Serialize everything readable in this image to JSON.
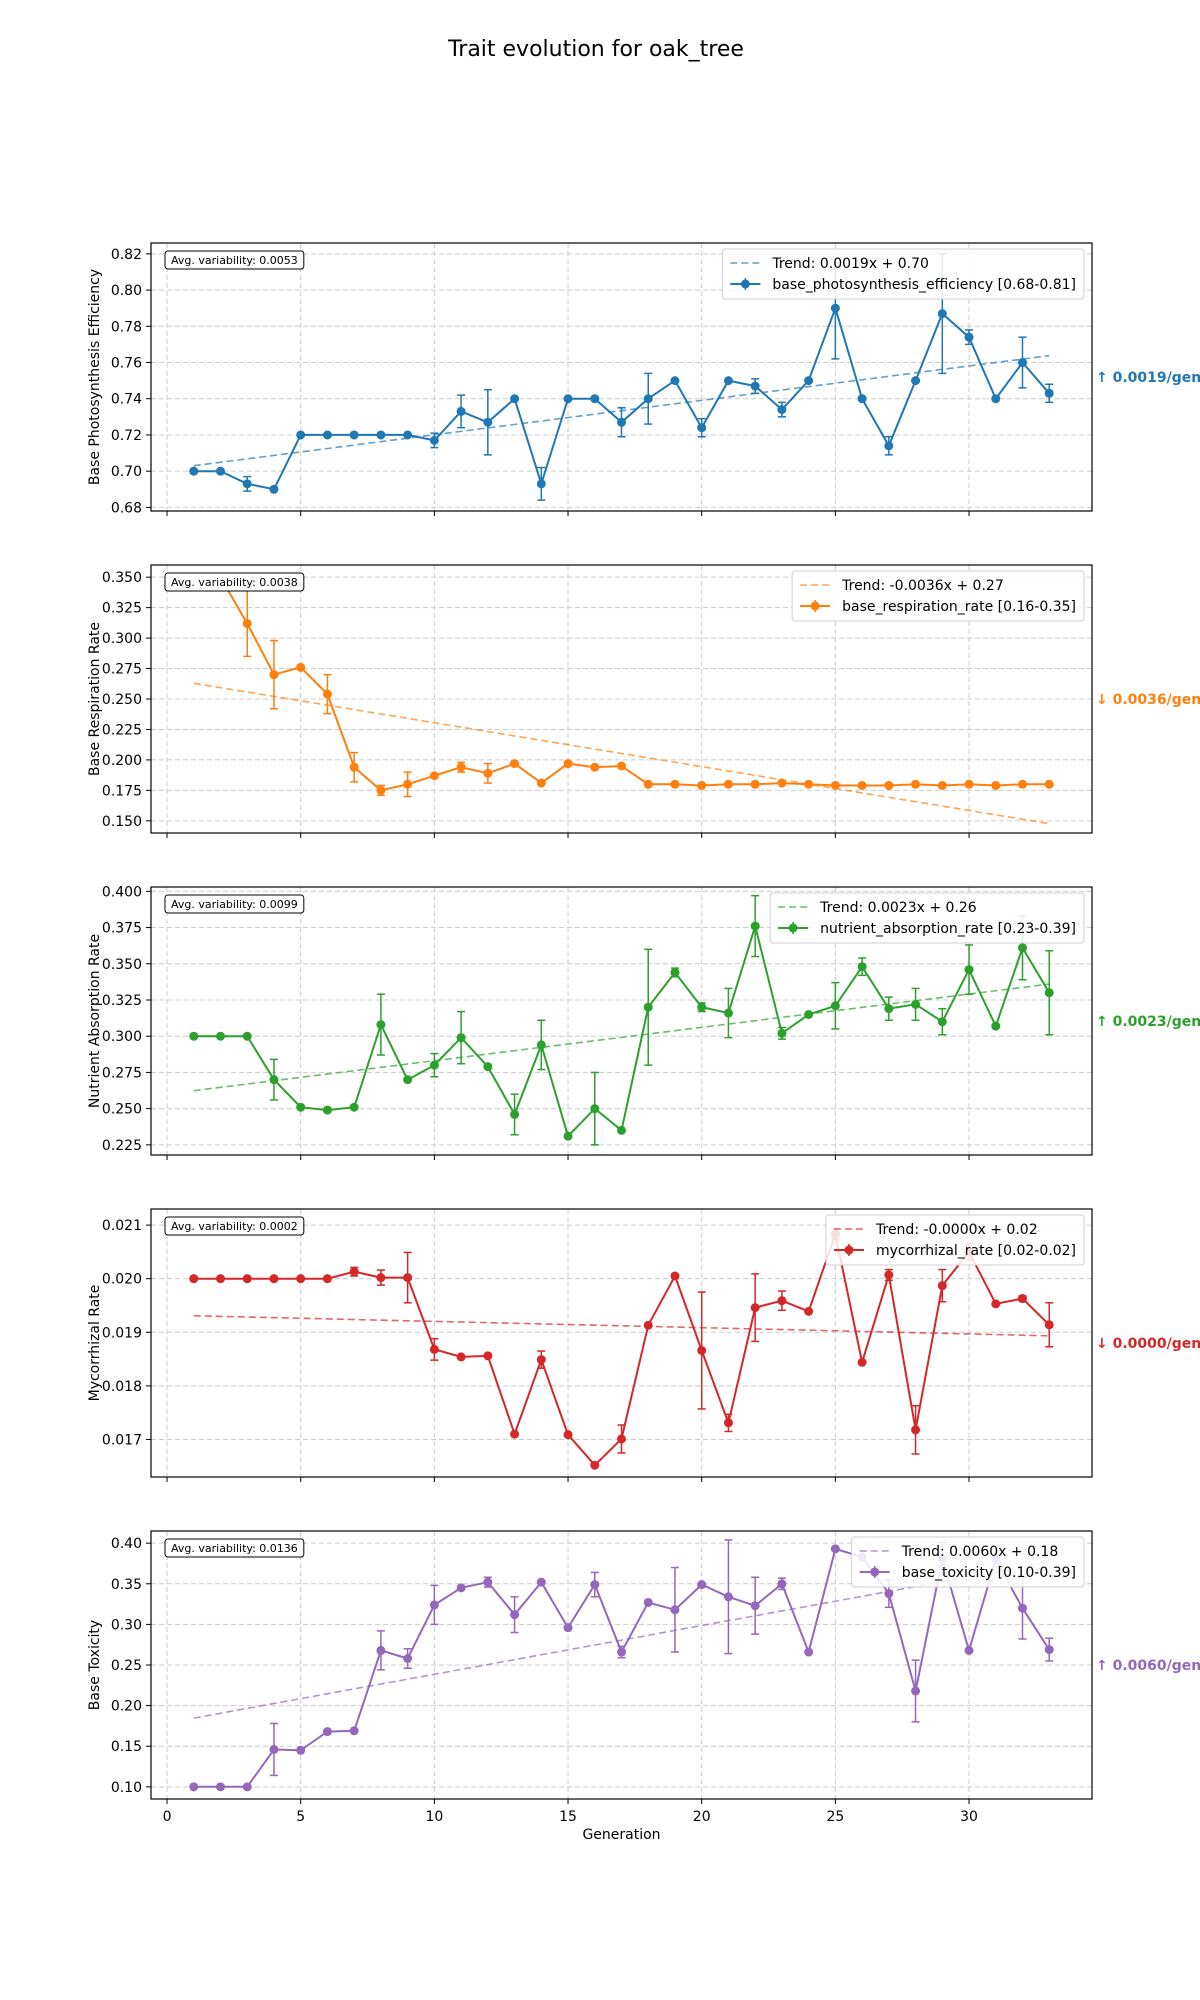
{
  "figure_title": "Trait evolution for oak_tree",
  "colors": {
    "base_photosynthesis_efficiency": "#1f77b4",
    "base_respiration_rate": "#ff7f0e",
    "nutrient_absorption_rate": "#2ca02c",
    "mycorrhizal_rate": "#d62728",
    "base_toxicity": "#9467bd",
    "grid": "#cccccc",
    "axis": "#000000"
  },
  "chart_data": [
    {
      "type": "line",
      "id": "base_photosynthesis_efficiency",
      "ylabel": "Base Photosynthesis Efficiency",
      "xlabel": "",
      "xlim": [
        -0.6,
        34.6
      ],
      "ylim": [
        0.678,
        0.826
      ],
      "yticks": [
        0.68,
        0.7,
        0.72,
        0.74,
        0.76,
        0.78,
        0.8,
        0.82
      ],
      "ytick_labels": [
        "0.68",
        "0.70",
        "0.72",
        "0.74",
        "0.76",
        "0.78",
        "0.80",
        "0.82"
      ],
      "xticks": [
        0,
        5,
        10,
        15,
        20,
        25,
        30
      ],
      "xtick_labels": [],
      "variability_label": "Avg. variability: 0.0053",
      "trend_label": "Trend: 0.0019x + 0.70",
      "series_label": "base_photosynthesis_efficiency [0.68-0.81]",
      "rate_label": "↑ 0.0019/gen",
      "trend": {
        "slope": 0.0019,
        "intercept": 0.7011
      },
      "x": [
        1,
        2,
        3,
        4,
        5,
        6,
        7,
        8,
        9,
        10,
        11,
        12,
        13,
        14,
        15,
        16,
        17,
        18,
        19,
        20,
        21,
        22,
        23,
        24,
        25,
        26,
        27,
        28,
        29,
        30,
        31,
        32,
        33
      ],
      "values": [
        0.7,
        0.7,
        0.693,
        0.69,
        0.72,
        0.72,
        0.72,
        0.72,
        0.72,
        0.717,
        0.733,
        0.727,
        0.74,
        0.693,
        0.74,
        0.74,
        0.727,
        0.74,
        0.75,
        0.724,
        0.75,
        0.747,
        0.734,
        0.75,
        0.79,
        0.74,
        0.714,
        0.75,
        0.787,
        0.774,
        0.74,
        0.76,
        0.743
      ],
      "errors": [
        0,
        0,
        0.004,
        0,
        0,
        0,
        0,
        0,
        0,
        0.004,
        0.009,
        0.018,
        0,
        0.009,
        0,
        0,
        0.008,
        0.014,
        0,
        0.005,
        0,
        0.004,
        0.004,
        0,
        0.028,
        0,
        0.005,
        0,
        0.033,
        0.004,
        0,
        0.014,
        0.005
      ]
    },
    {
      "type": "line",
      "id": "base_respiration_rate",
      "ylabel": "Base Respiration Rate",
      "xlabel": "",
      "xlim": [
        -0.6,
        34.6
      ],
      "ylim": [
        0.14,
        0.36
      ],
      "yticks": [
        0.15,
        0.175,
        0.2,
        0.225,
        0.25,
        0.275,
        0.3,
        0.325,
        0.35
      ],
      "ytick_labels": [
        "0.150",
        "0.175",
        "0.200",
        "0.225",
        "0.250",
        "0.275",
        "0.300",
        "0.325",
        "0.350"
      ],
      "xticks": [
        0,
        5,
        10,
        15,
        20,
        25,
        30
      ],
      "xtick_labels": [],
      "variability_label": "Avg. variability: 0.0038",
      "trend_label": "Trend: -0.0036x + 0.27",
      "series_label": "base_respiration_rate [0.16-0.35]",
      "rate_label": "↓ 0.0036/gen",
      "trend": {
        "slope": -0.0036,
        "intercept": 0.2665
      },
      "x": [
        1,
        2,
        3,
        4,
        5,
        6,
        7,
        8,
        9,
        10,
        11,
        12,
        13,
        14,
        15,
        16,
        17,
        18,
        19,
        20,
        21,
        22,
        23,
        24,
        25,
        26,
        27,
        28,
        29,
        30,
        31,
        32,
        33
      ],
      "values": [
        0.35,
        0.35,
        0.312,
        0.27,
        0.276,
        0.254,
        0.194,
        0.175,
        0.18,
        0.187,
        0.194,
        0.189,
        0.197,
        0.181,
        0.197,
        0.194,
        0.195,
        0.18,
        0.18,
        0.179,
        0.18,
        0.18,
        0.181,
        0.18,
        0.179,
        0.179,
        0.179,
        0.18,
        0.179,
        0.18,
        0.179,
        0.18,
        0.18
      ],
      "errors": [
        0,
        0,
        0.027,
        0.028,
        0,
        0.016,
        0.012,
        0.004,
        0.01,
        0,
        0.004,
        0.008,
        0,
        0,
        0,
        0,
        0,
        0,
        0,
        0,
        0,
        0,
        0,
        0,
        0,
        0,
        0,
        0,
        0,
        0,
        0,
        0,
        0
      ]
    },
    {
      "type": "line",
      "id": "nutrient_absorption_rate",
      "ylabel": "Nutrient Absorption Rate",
      "xlabel": "",
      "xlim": [
        -0.6,
        34.6
      ],
      "ylim": [
        0.218,
        0.403
      ],
      "yticks": [
        0.225,
        0.25,
        0.275,
        0.3,
        0.325,
        0.35,
        0.375,
        0.4
      ],
      "ytick_labels": [
        "0.225",
        "0.250",
        "0.275",
        "0.300",
        "0.325",
        "0.350",
        "0.375",
        "0.400"
      ],
      "xticks": [
        0,
        5,
        10,
        15,
        20,
        25,
        30
      ],
      "xtick_labels": [],
      "variability_label": "Avg. variability: 0.0099",
      "trend_label": "Trend: 0.0023x + 0.26",
      "series_label": "nutrient_absorption_rate [0.23-0.39]",
      "rate_label": "↑ 0.0023/gen",
      "trend": {
        "slope": 0.0023,
        "intercept": 0.2601
      },
      "x": [
        1,
        2,
        3,
        4,
        5,
        6,
        7,
        8,
        9,
        10,
        11,
        12,
        13,
        14,
        15,
        16,
        17,
        18,
        19,
        20,
        21,
        22,
        23,
        24,
        25,
        26,
        27,
        28,
        29,
        30,
        31,
        32,
        33
      ],
      "values": [
        0.3,
        0.3,
        0.3,
        0.27,
        0.251,
        0.249,
        0.251,
        0.308,
        0.27,
        0.28,
        0.299,
        0.279,
        0.246,
        0.294,
        0.231,
        0.25,
        0.235,
        0.32,
        0.344,
        0.32,
        0.316,
        0.376,
        0.302,
        0.315,
        0.321,
        0.348,
        0.319,
        0.322,
        0.31,
        0.346,
        0.307,
        0.361,
        0.33
      ],
      "errors": [
        0,
        0,
        0,
        0.014,
        0,
        0,
        0,
        0.021,
        0,
        0.008,
        0.018,
        0,
        0.014,
        0.017,
        0,
        0.025,
        0,
        0.04,
        0.003,
        0.003,
        0.017,
        0.021,
        0.004,
        0,
        0.016,
        0.006,
        0.008,
        0.011,
        0.009,
        0.017,
        0,
        0.022,
        0.029
      ]
    },
    {
      "type": "line",
      "id": "mycorrhizal_rate",
      "ylabel": "Mycorrhizal Rate",
      "xlabel": "",
      "xlim": [
        -0.6,
        34.6
      ],
      "ylim": [
        0.0163,
        0.0213
      ],
      "yticks": [
        0.017,
        0.018,
        0.019,
        0.02,
        0.021
      ],
      "ytick_labels": [
        "0.017",
        "0.018",
        "0.019",
        "0.020",
        "0.021"
      ],
      "xticks": [
        0,
        5,
        10,
        15,
        20,
        25,
        30
      ],
      "xtick_labels": [],
      "variability_label": "Avg. variability: 0.0002",
      "trend_label": "Trend: -0.0000x + 0.02",
      "series_label": "mycorrhizal_rate [0.02-0.02]",
      "rate_label": "↓ 0.0000/gen",
      "trend": {
        "slope": -1.17e-05,
        "intercept": 0.01932
      },
      "x": [
        1,
        2,
        3,
        4,
        5,
        6,
        7,
        8,
        9,
        10,
        11,
        12,
        13,
        14,
        15,
        16,
        17,
        18,
        19,
        20,
        21,
        22,
        23,
        24,
        25,
        26,
        27,
        28,
        29,
        30,
        31,
        32,
        33
      ],
      "values": [
        0.02,
        0.02,
        0.02,
        0.02,
        0.02,
        0.02,
        0.02013,
        0.02002,
        0.02002,
        0.01868,
        0.01854,
        0.01856,
        0.0171,
        0.01849,
        0.01709,
        0.01652,
        0.01701,
        0.01913,
        0.02005,
        0.01866,
        0.01731,
        0.01946,
        0.01959,
        0.01939,
        0.02083,
        0.01844,
        0.02007,
        0.01718,
        0.01987,
        0.0205,
        0.01953,
        0.01963,
        0.01914
      ],
      "errors": [
        0,
        0,
        0,
        0,
        0,
        0,
        8e-05,
        0.00014,
        0.00047,
        0.0002,
        0,
        0,
        0,
        0.00016,
        0,
        0,
        0.00026,
        0,
        3e-05,
        0.00109,
        0.00016,
        0.00063,
        0.00018,
        0,
        0.0001,
        0,
        0.0001,
        0.00045,
        0.0003,
        0.00015,
        0,
        5e-05,
        0.00041
      ]
    },
    {
      "type": "line",
      "id": "base_toxicity",
      "ylabel": "Base Toxicity",
      "xlabel": "Generation",
      "xlim": [
        -0.6,
        34.6
      ],
      "ylim": [
        0.085,
        0.415
      ],
      "yticks": [
        0.1,
        0.15,
        0.2,
        0.25,
        0.3,
        0.35,
        0.4
      ],
      "ytick_labels": [
        "0.10",
        "0.15",
        "0.20",
        "0.25",
        "0.30",
        "0.35",
        "0.40"
      ],
      "xticks": [
        0,
        5,
        10,
        15,
        20,
        25,
        30
      ],
      "xtick_labels": [
        "0",
        "5",
        "10",
        "15",
        "20",
        "25",
        "30"
      ],
      "variability_label": "Avg. variability: 0.0136",
      "trend_label": "Trend: 0.0060x + 0.18",
      "series_label": "base_toxicity [0.10-0.39]",
      "rate_label": "↑ 0.0060/gen",
      "trend": {
        "slope": 0.006,
        "intercept": 0.1786
      },
      "x": [
        1,
        2,
        3,
        4,
        5,
        6,
        7,
        8,
        9,
        10,
        11,
        12,
        13,
        14,
        15,
        16,
        17,
        18,
        19,
        20,
        21,
        22,
        23,
        24,
        25,
        26,
        27,
        28,
        29,
        30,
        31,
        32,
        33
      ],
      "values": [
        0.1,
        0.1,
        0.1,
        0.146,
        0.145,
        0.168,
        0.169,
        0.268,
        0.258,
        0.324,
        0.345,
        0.352,
        0.312,
        0.352,
        0.296,
        0.349,
        0.266,
        0.327,
        0.318,
        0.349,
        0.334,
        0.323,
        0.35,
        0.266,
        0.393,
        0.383,
        0.338,
        0.218,
        0.381,
        0.268,
        0.38,
        0.32,
        0.269
      ],
      "errors": [
        0,
        0,
        0,
        0.032,
        0,
        0,
        0,
        0.024,
        0.012,
        0.024,
        0,
        0.006,
        0.022,
        0,
        0,
        0.015,
        0.007,
        0,
        0.052,
        0,
        0.07,
        0.035,
        0.007,
        0,
        0,
        0,
        0.017,
        0.038,
        0.02,
        0,
        0,
        0.038,
        0.014
      ]
    }
  ]
}
